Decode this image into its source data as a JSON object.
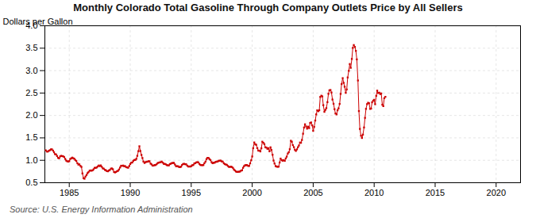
{
  "chart_data": {
    "type": "line",
    "title": "Monthly Colorado Total Gasoline Through Company Outlets Price by All Sellers",
    "ylabel": "Dollars per Gallon",
    "annotations": [
      "Source: U.S. Energy Information Administration"
    ],
    "color": "#CC0000",
    "marker": "square",
    "line_style": "solid",
    "grid": true,
    "xlim": [
      1983,
      2022
    ],
    "ylim": [
      0.5,
      4.0
    ],
    "xticks": [
      1985,
      1990,
      1995,
      2000,
      2005,
      2010,
      2015,
      2020
    ],
    "yticks": [
      0.5,
      {
        "value": 1.0,
        "label": "1.0"
      },
      1.5,
      {
        "value": 2.0,
        "label": "2.0"
      },
      2.5,
      {
        "value": 3.0,
        "label": "3.0"
      },
      3.5,
      {
        "value": 4.0,
        "label": "4.0"
      }
    ],
    "x": [
      1983.08,
      1983.17,
      1983.25,
      1983.33,
      1983.42,
      1983.5,
      1983.58,
      1983.67,
      1983.75,
      1983.83,
      1983.92,
      1984.0,
      1984.08,
      1984.17,
      1984.25,
      1984.33,
      1984.42,
      1984.5,
      1984.58,
      1984.67,
      1984.75,
      1984.83,
      1984.92,
      1985.0,
      1985.08,
      1985.17,
      1985.25,
      1985.33,
      1985.42,
      1985.5,
      1985.58,
      1985.67,
      1985.75,
      1985.83,
      1985.92,
      1986.0,
      1986.08,
      1986.17,
      1986.25,
      1986.33,
      1986.42,
      1986.5,
      1986.58,
      1986.67,
      1986.75,
      1986.83,
      1986.92,
      1987.0,
      1987.08,
      1987.17,
      1987.25,
      1987.33,
      1987.42,
      1987.5,
      1987.58,
      1987.67,
      1987.75,
      1987.83,
      1987.92,
      1988.0,
      1988.08,
      1988.17,
      1988.25,
      1988.33,
      1988.42,
      1988.5,
      1988.58,
      1988.67,
      1988.75,
      1988.83,
      1988.92,
      1989.0,
      1989.08,
      1989.17,
      1989.25,
      1989.33,
      1989.42,
      1989.5,
      1989.58,
      1989.67,
      1989.75,
      1989.83,
      1989.92,
      1990.0,
      1990.08,
      1990.17,
      1990.25,
      1990.33,
      1990.42,
      1990.5,
      1990.58,
      1990.67,
      1990.75,
      1990.83,
      1990.92,
      1991.0,
      1991.08,
      1991.17,
      1991.25,
      1991.33,
      1991.42,
      1991.5,
      1991.58,
      1991.67,
      1991.75,
      1991.83,
      1991.92,
      1992.0,
      1992.08,
      1992.17,
      1992.25,
      1992.33,
      1992.42,
      1992.5,
      1992.58,
      1992.67,
      1992.75,
      1992.83,
      1992.92,
      1993.0,
      1993.08,
      1993.17,
      1993.25,
      1993.33,
      1993.42,
      1993.5,
      1993.58,
      1993.67,
      1993.75,
      1993.83,
      1993.92,
      1994.0,
      1994.08,
      1994.17,
      1994.25,
      1994.33,
      1994.42,
      1994.5,
      1994.58,
      1994.67,
      1994.75,
      1994.83,
      1994.92,
      1995.0,
      1995.08,
      1995.17,
      1995.25,
      1995.33,
      1995.42,
      1995.5,
      1995.58,
      1995.67,
      1995.75,
      1995.83,
      1995.92,
      1996.0,
      1996.08,
      1996.17,
      1996.25,
      1996.33,
      1996.42,
      1996.5,
      1996.58,
      1996.67,
      1996.75,
      1996.83,
      1996.92,
      1997.0,
      1997.08,
      1997.17,
      1997.25,
      1997.33,
      1997.42,
      1997.5,
      1997.58,
      1997.67,
      1997.75,
      1997.83,
      1997.92,
      1998.0,
      1998.08,
      1998.17,
      1998.25,
      1998.33,
      1998.42,
      1998.5,
      1998.58,
      1998.67,
      1998.75,
      1998.83,
      1998.92,
      1999.0,
      1999.08,
      1999.17,
      1999.25,
      1999.33,
      1999.42,
      1999.5,
      1999.58,
      1999.67,
      1999.75,
      1999.83,
      1999.92,
      2000.0,
      2000.08,
      2000.17,
      2000.25,
      2000.33,
      2000.42,
      2000.5,
      2000.58,
      2000.67,
      2000.75,
      2000.83,
      2000.92,
      2001.0,
      2001.08,
      2001.17,
      2001.25,
      2001.33,
      2001.42,
      2001.5,
      2001.58,
      2001.67,
      2001.75,
      2001.83,
      2001.92,
      2002.0,
      2002.08,
      2002.17,
      2002.25,
      2002.33,
      2002.42,
      2002.5,
      2002.58,
      2002.67,
      2002.75,
      2002.83,
      2002.92,
      2003.0,
      2003.08,
      2003.17,
      2003.25,
      2003.33,
      2003.42,
      2003.5,
      2003.58,
      2003.67,
      2003.75,
      2003.83,
      2003.92,
      2004.0,
      2004.08,
      2004.17,
      2004.25,
      2004.33,
      2004.42,
      2004.5,
      2004.58,
      2004.67,
      2004.75,
      2004.83,
      2004.92,
      2005.0,
      2005.08,
      2005.17,
      2005.25,
      2005.33,
      2005.42,
      2005.5,
      2005.58,
      2005.67,
      2005.75,
      2005.83,
      2005.92,
      2006.0,
      2006.08,
      2006.17,
      2006.25,
      2006.33,
      2006.42,
      2006.5,
      2006.58,
      2006.67,
      2006.75,
      2006.83,
      2006.92,
      2007.0,
      2007.08,
      2007.17,
      2007.25,
      2007.33,
      2007.42,
      2007.5,
      2007.58,
      2007.67,
      2007.75,
      2007.83,
      2007.92,
      2008.0,
      2008.08,
      2008.17,
      2008.25,
      2008.33,
      2008.42,
      2008.5,
      2008.58,
      2008.67,
      2008.75,
      2008.83,
      2008.92,
      2009.0,
      2009.08,
      2009.17,
      2009.25,
      2009.33,
      2009.42,
      2009.5,
      2009.58,
      2009.67,
      2009.75,
      2009.83,
      2009.92,
      2010.0,
      2010.08,
      2010.17,
      2010.25,
      2010.33,
      2010.42,
      2010.5,
      2010.58,
      2010.67,
      2010.75,
      2010.83,
      2010.92
    ],
    "values": [
      1.221,
      1.195,
      1.196,
      1.214,
      1.226,
      1.244,
      1.244,
      1.216,
      1.179,
      1.137,
      1.131,
      1.095,
      1.055,
      1.044,
      1.086,
      1.099,
      1.094,
      1.089,
      1.073,
      1.031,
      0.994,
      0.978,
      0.972,
      0.98,
      1.03,
      1.045,
      1.06,
      1.046,
      1.033,
      1.004,
      0.985,
      0.934,
      0.904,
      0.91,
      0.874,
      0.853,
      0.707,
      0.602,
      0.589,
      0.638,
      0.673,
      0.713,
      0.738,
      0.769,
      0.774,
      0.768,
      0.779,
      0.801,
      0.832,
      0.831,
      0.84,
      0.862,
      0.884,
      0.869,
      0.886,
      0.856,
      0.82,
      0.813,
      0.786,
      0.779,
      0.76,
      0.755,
      0.773,
      0.784,
      0.814,
      0.818,
      0.8,
      0.74,
      0.73,
      0.74,
      0.757,
      0.766,
      0.795,
      0.839,
      0.879,
      0.877,
      0.883,
      0.867,
      0.87,
      0.846,
      0.843,
      0.834,
      0.872,
      0.918,
      0.946,
      0.952,
      0.988,
      1.006,
      1.009,
      1.032,
      1.1,
      1.204,
      1.313,
      1.207,
      1.119,
      1.05,
      0.972,
      0.941,
      0.957,
      0.967,
      0.97,
      0.979,
      0.978,
      0.926,
      0.908,
      0.882,
      0.882,
      0.896,
      0.894,
      0.913,
      0.939,
      0.948,
      0.953,
      0.957,
      0.972,
      0.948,
      0.921,
      0.92,
      0.909,
      0.893,
      0.888,
      0.887,
      0.916,
      0.924,
      0.939,
      0.94,
      0.943,
      0.905,
      0.869,
      0.867,
      0.867,
      0.851,
      0.849,
      0.857,
      0.895,
      0.917,
      0.922,
      0.913,
      0.913,
      0.882,
      0.861,
      0.863,
      0.86,
      0.87,
      0.889,
      0.895,
      0.929,
      0.937,
      0.952,
      0.958,
      0.954,
      0.92,
      0.897,
      0.892,
      0.892,
      0.894,
      0.935,
      0.97,
      1.026,
      1.054,
      1.052,
      1.026,
      1.005,
      0.958,
      0.935,
      0.946,
      0.946,
      0.964,
      0.97,
      0.972,
      0.988,
      0.991,
      0.993,
      0.975,
      0.971,
      0.934,
      0.916,
      0.907,
      0.899,
      0.874,
      0.855,
      0.852,
      0.858,
      0.851,
      0.832,
      0.795,
      0.773,
      0.75,
      0.741,
      0.742,
      0.746,
      0.749,
      0.769,
      0.777,
      0.832,
      0.869,
      0.89,
      0.893,
      0.893,
      0.875,
      0.875,
      0.932,
      1.0,
      1.085,
      1.27,
      1.398,
      1.357,
      1.346,
      1.271,
      1.216,
      1.216,
      1.198,
      1.267,
      1.415,
      1.39,
      1.36,
      1.29,
      1.282,
      1.255,
      1.27,
      1.2,
      1.29,
      1.23,
      1.123,
      0.994,
      0.929,
      0.87,
      0.862,
      0.855,
      0.859,
      0.951,
      1.038,
      1.003,
      0.991,
      1.003,
      0.988,
      1.042,
      1.082,
      1.151,
      1.18,
      1.246,
      1.436,
      1.415,
      1.338,
      1.293,
      1.233,
      1.209,
      1.244,
      1.291,
      1.33,
      1.396,
      1.39,
      1.454,
      1.593,
      1.73,
      1.803,
      1.754,
      1.706,
      1.75,
      1.718,
      1.833,
      1.844,
      1.78,
      1.657,
      1.744,
      1.887,
      2.024,
      2.114,
      2.095,
      2.116,
      2.413,
      2.441,
      2.425,
      2.229,
      2.081,
      2.125,
      2.163,
      2.298,
      2.483,
      2.561,
      2.567,
      2.512,
      2.355,
      2.261,
      2.14,
      2.043,
      2.024,
      2.116,
      2.158,
      2.257,
      2.481,
      2.7,
      2.832,
      2.727,
      2.641,
      2.504,
      2.58,
      2.847,
      2.995,
      3.147,
      3.062,
      3.26,
      3.507,
      3.57,
      3.528,
      3.44,
      3.25,
      2.78,
      2.098,
      1.7,
      1.549,
      1.498,
      1.573,
      1.732,
      1.947,
      2.147,
      2.253,
      2.283,
      2.272,
      2.147,
      2.153,
      2.295,
      2.33,
      2.348,
      2.25,
      2.438,
      2.553,
      2.5,
      2.508,
      2.477,
      2.491,
      2.239,
      2.208,
      2.385,
      2.415
    ]
  }
}
